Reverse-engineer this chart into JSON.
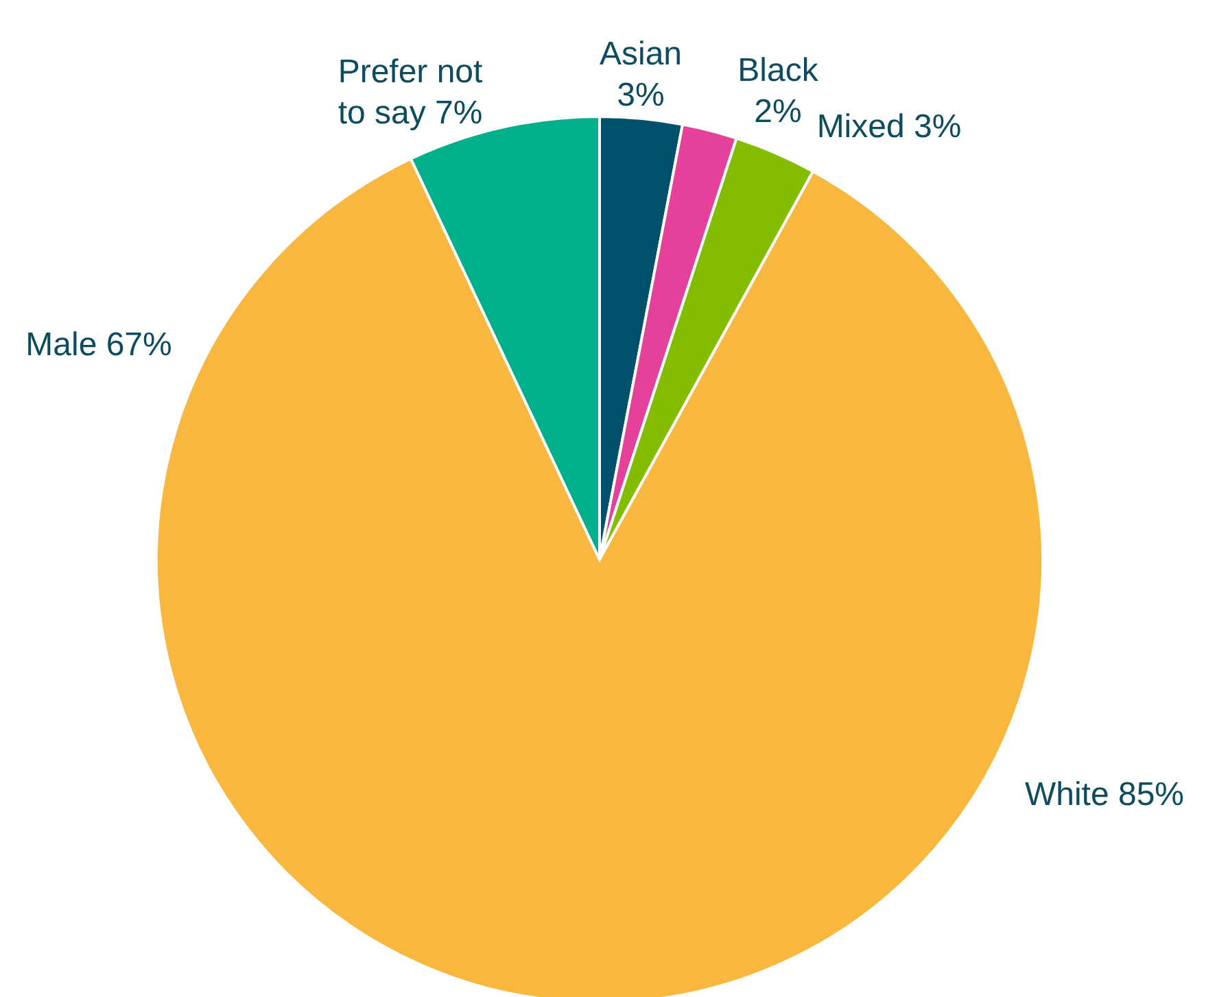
{
  "chart_data": {
    "type": "pie",
    "categories": [
      "Asian",
      "Black",
      "Mixed",
      "White",
      "Prefer not to say"
    ],
    "values": [
      3,
      2,
      3,
      85,
      7
    ],
    "value_labels": [
      "3%",
      "2%",
      "3%",
      "85%",
      "7%"
    ],
    "colors": [
      "#004f6b",
      "#e6419a",
      "#84bd00",
      "#f8b83f",
      "#00b08c"
    ],
    "annotations": [
      "Male 67%"
    ]
  }
}
